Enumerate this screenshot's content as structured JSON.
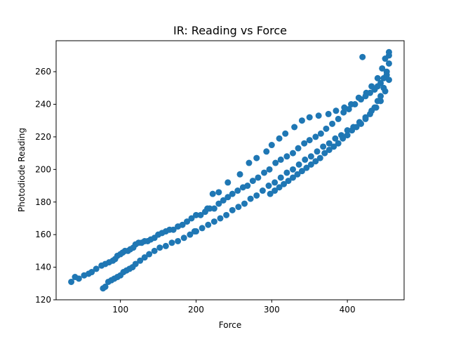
{
  "chart_data": {
    "type": "scatter",
    "title": "IR: Reading vs Force",
    "xlabel": "Force",
    "ylabel": "Photodiode Reading",
    "xlim": [
      15,
      475
    ],
    "ylim": [
      120,
      279
    ],
    "xticks": [
      100,
      200,
      300,
      400
    ],
    "yticks": [
      120,
      140,
      160,
      180,
      200,
      220,
      240,
      260
    ],
    "grid": false,
    "legend": "none",
    "marker_color": "#1f77b4",
    "series": [
      {
        "x": [
          35,
          40,
          45,
          52,
          58,
          62,
          68,
          75,
          80,
          85,
          90,
          93,
          96,
          100,
          103,
          106,
          110,
          113,
          117,
          120,
          124,
          128,
          132,
          136,
          140,
          145,
          150,
          155,
          160,
          165,
          170,
          176,
          182,
          188,
          194,
          200,
          206,
          212,
          218,
          224,
          230,
          236,
          242,
          248,
          255,
          262,
          268,
          275,
          282,
          290,
          297,
          305,
          312,
          320,
          328,
          335,
          343,
          350,
          358,
          365,
          372,
          380,
          388,
          395,
          402,
          410,
          418,
          424,
          430,
          436,
          440,
          444,
          448,
          452,
          455,
          77,
          80,
          84,
          88,
          92,
          96,
          100,
          104,
          108,
          112,
          116,
          120,
          126,
          132,
          138,
          145,
          152,
          160,
          168,
          176,
          184,
          192,
          200,
          208,
          216,
          224,
          232,
          240,
          248,
          256,
          264,
          272,
          280,
          288,
          296,
          304,
          312,
          320,
          328,
          336,
          344,
          352,
          360,
          368,
          376,
          384,
          392,
          400,
          408,
          416,
          424,
          432,
          438,
          444,
          450,
          455,
          198,
          215,
          222,
          230,
          242,
          258,
          270,
          280,
          293,
          300,
          310,
          318,
          330,
          340,
          350,
          362,
          375,
          385,
          396,
          405,
          415,
          425,
          432,
          440,
          446,
          450,
          455,
          455,
          420,
          452,
          448,
          444,
          440,
          436,
          430,
          424,
          418,
          412,
          406,
          400,
          394,
          388,
          382,
          376,
          370,
          364,
          358,
          352,
          346,
          340,
          334,
          328,
          322,
          316,
          310,
          304,
          298
        ],
        "y": [
          131,
          134,
          133,
          135,
          136,
          137,
          139,
          141,
          142,
          143,
          144,
          145,
          147,
          148,
          149,
          150,
          150,
          151,
          152,
          154,
          155,
          155,
          156,
          156,
          157,
          158,
          160,
          161,
          162,
          163,
          163,
          165,
          166,
          168,
          170,
          172,
          172,
          174,
          176,
          176,
          179,
          181,
          183,
          185,
          187,
          189,
          190,
          193,
          195,
          198,
          200,
          204,
          206,
          208,
          210,
          213,
          216,
          218,
          220,
          222,
          225,
          228,
          231,
          235,
          237,
          240,
          243,
          245,
          247,
          249,
          251,
          253,
          256,
          260,
          265,
          127,
          128,
          131,
          132,
          133,
          134,
          135,
          137,
          138,
          139,
          140,
          142,
          144,
          146,
          148,
          150,
          152,
          153,
          155,
          156,
          158,
          160,
          162,
          164,
          166,
          168,
          170,
          172,
          175,
          177,
          179,
          182,
          184,
          187,
          190,
          192,
          195,
          198,
          200,
          203,
          206,
          208,
          211,
          214,
          216,
          219,
          221,
          224,
          226,
          229,
          232,
          236,
          238,
          242,
          248,
          255,
          162,
          176,
          185,
          186,
          192,
          197,
          204,
          207,
          211,
          215,
          219,
          222,
          226,
          230,
          232,
          233,
          234,
          236,
          238,
          240,
          244,
          247,
          251,
          256,
          262,
          268,
          270,
          272,
          269,
          258,
          250,
          245,
          242,
          238,
          234,
          231,
          228,
          226,
          224,
          221,
          219,
          216,
          214,
          212,
          210,
          207,
          205,
          203,
          201,
          199,
          197,
          195,
          193,
          191,
          189,
          187,
          185
        ]
      }
    ]
  }
}
